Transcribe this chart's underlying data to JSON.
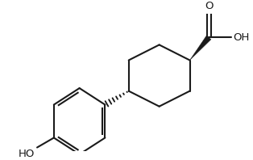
{
  "bg_color": "#ffffff",
  "line_color": "#1a1a1a",
  "line_width": 1.5,
  "figsize": [
    3.14,
    1.98
  ],
  "dpi": 100,
  "xlim": [
    0,
    10
  ],
  "ylim": [
    0,
    6.3
  ]
}
